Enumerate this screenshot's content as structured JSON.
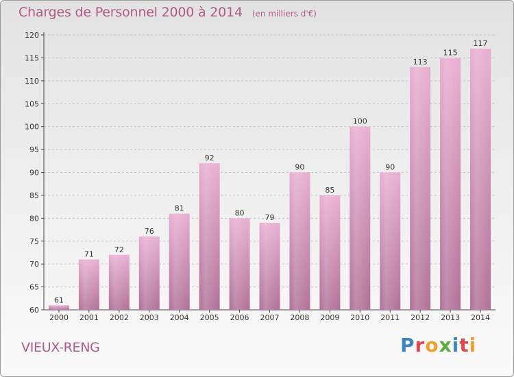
{
  "header": {
    "title": "Charges de Personnel 2000 à 2014",
    "subtitle": "(en milliers d'€)"
  },
  "footer": {
    "commune": "VIEUX-RENG",
    "logo_text": "Proxiti"
  },
  "colors": {
    "accent_text": "#b05a8a",
    "bar_top": "#e8aed0",
    "bar_bottom": "#b07096",
    "axis": "#444444"
  },
  "chart_data": {
    "type": "bar",
    "categories": [
      "2000",
      "2001",
      "2002",
      "2003",
      "2004",
      "2005",
      "2006",
      "2007",
      "2008",
      "2009",
      "2010",
      "2011",
      "2012",
      "2013",
      "2014"
    ],
    "values": [
      61,
      71,
      72,
      76,
      81,
      92,
      80,
      79,
      90,
      85,
      100,
      90,
      113,
      115,
      117
    ],
    "title": "Charges de Personnel 2000 à 2014",
    "subtitle": "(en milliers d'€)",
    "xlabel": "",
    "ylabel": "",
    "ylim": [
      60,
      120
    ],
    "yticks": [
      60,
      65,
      70,
      75,
      80,
      85,
      90,
      95,
      100,
      105,
      110,
      115,
      120
    ],
    "grid": "y-dashed",
    "data_labels": true
  }
}
